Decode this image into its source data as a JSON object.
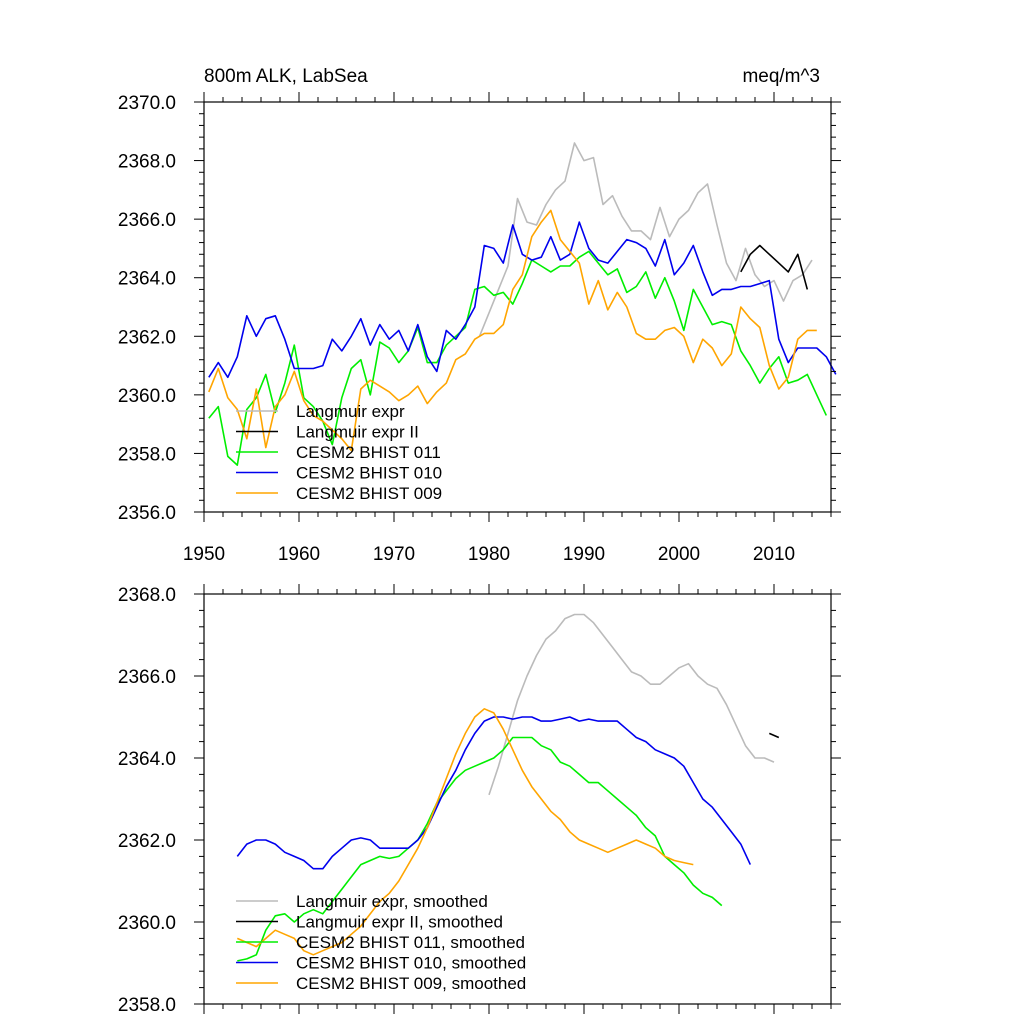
{
  "chart_data": [
    {
      "type": "line",
      "title_left": "800m ALK, LabSea",
      "title_right": "meq/m^3",
      "xlim": [
        1950,
        2016
      ],
      "ylim": [
        2356,
        2370
      ],
      "xticks": [
        1950,
        1960,
        1970,
        1980,
        1990,
        2000,
        2010
      ],
      "xtick_labels": [
        "1950",
        "1960",
        "1970",
        "1980",
        "1990",
        "2000",
        "2010"
      ],
      "yticks": [
        2356,
        2358,
        2360,
        2362,
        2364,
        2366,
        2368,
        2370
      ],
      "ytick_labels": [
        "2356.0",
        "2358.0",
        "2360.0",
        "2362.0",
        "2364.0",
        "2366.0",
        "2368.0",
        "2370.0"
      ],
      "legend_position": "bottom-left",
      "series": [
        {
          "name": "Langmuir expr",
          "color": "#bbbbbb",
          "x_start": 1979,
          "values": [
            2362.0,
            2362.8,
            2363.6,
            2364.4,
            2366.7,
            2365.9,
            2365.8,
            2366.5,
            2367.0,
            2367.3,
            2368.6,
            2368.0,
            2368.1,
            2366.5,
            2366.8,
            2366.1,
            2365.6,
            2365.6,
            2365.3,
            2366.4,
            2365.4,
            2366.0,
            2366.3,
            2366.9,
            2367.2,
            2365.8,
            2364.5,
            2363.9,
            2365.0,
            2364.1,
            2363.7,
            2363.9,
            2363.2,
            2363.9,
            2364.1,
            2364.6
          ]
        },
        {
          "name": "Langmuir expr II",
          "color": "#000000",
          "x_start": 2006.5,
          "values": [
            2364.2,
            2364.8,
            2365.1,
            2364.8,
            2364.5,
            2364.2,
            2364.8,
            2363.6
          ]
        },
        {
          "name": "CESM2 BHIST 011",
          "color": "#00ee00",
          "x_start": 1950.5,
          "values": [
            2359.2,
            2359.6,
            2357.9,
            2357.6,
            2359.5,
            2359.9,
            2360.7,
            2359.4,
            2360.4,
            2361.7,
            2359.9,
            2359.6,
            2359.1,
            2358.3,
            2359.9,
            2360.9,
            2361.2,
            2360.0,
            2361.8,
            2361.6,
            2361.1,
            2361.5,
            2362.3,
            2361.1,
            2361.1,
            2361.7,
            2362.0,
            2362.3,
            2363.6,
            2363.7,
            2363.4,
            2363.5,
            2363.1,
            2363.8,
            2364.6,
            2364.4,
            2364.2,
            2364.4,
            2364.4,
            2364.7,
            2364.9,
            2364.5,
            2364.1,
            2364.3,
            2363.5,
            2363.7,
            2364.2,
            2363.3,
            2364.0,
            2363.2,
            2362.2,
            2363.6,
            2363.0,
            2362.4,
            2362.5,
            2362.4,
            2361.5,
            2361.0,
            2360.4,
            2360.9,
            2361.3,
            2360.4,
            2360.5,
            2360.7,
            2360.0,
            2359.3
          ]
        },
        {
          "name": "CESM2 BHIST 010",
          "color": "#0000ee",
          "x_start": 1950.5,
          "values": [
            2360.6,
            2361.1,
            2360.6,
            2361.3,
            2362.7,
            2362.0,
            2362.6,
            2362.7,
            2361.9,
            2360.9,
            2360.9,
            2360.9,
            2361.0,
            2361.9,
            2361.5,
            2362.0,
            2362.6,
            2361.7,
            2362.4,
            2361.9,
            2362.2,
            2361.5,
            2362.4,
            2361.3,
            2360.8,
            2362.2,
            2361.9,
            2362.4,
            2363.0,
            2365.1,
            2365.0,
            2364.5,
            2365.8,
            2364.8,
            2364.6,
            2364.7,
            2365.4,
            2364.6,
            2364.8,
            2365.9,
            2365.0,
            2364.6,
            2364.5,
            2364.9,
            2365.3,
            2365.2,
            2365.0,
            2364.4,
            2365.3,
            2364.1,
            2364.5,
            2365.1,
            2364.2,
            2363.4,
            2363.6,
            2363.6,
            2363.7,
            2363.7,
            2363.8,
            2363.9,
            2361.9,
            2361.1,
            2361.6,
            2361.6,
            2361.6,
            2361.3,
            2360.7
          ]
        },
        {
          "name": "CESM2 BHIST 009",
          "color": "#ffa500",
          "x_start": 1950.5,
          "values": [
            2360.1,
            2360.9,
            2359.9,
            2359.5,
            2358.5,
            2360.2,
            2358.2,
            2359.6,
            2360.0,
            2360.8,
            2359.8,
            2359.3,
            2359.1,
            2358.8,
            2358.5,
            2358.1,
            2360.2,
            2360.5,
            2360.3,
            2360.1,
            2359.8,
            2360.0,
            2360.3,
            2359.7,
            2360.1,
            2360.4,
            2361.2,
            2361.4,
            2361.9,
            2362.1,
            2362.1,
            2362.4,
            2363.6,
            2364.1,
            2365.4,
            2365.9,
            2366.3,
            2365.3,
            2364.9,
            2364.5,
            2363.1,
            2363.9,
            2362.9,
            2363.5,
            2363.0,
            2362.1,
            2361.9,
            2361.9,
            2362.2,
            2362.3,
            2362.0,
            2361.1,
            2361.9,
            2361.6,
            2361.0,
            2361.4,
            2363.0,
            2362.6,
            2362.3,
            2361.0,
            2360.2,
            2360.6,
            2361.9,
            2362.2,
            2362.2
          ]
        }
      ]
    },
    {
      "type": "line",
      "xlim": [
        1950,
        2016
      ],
      "ylim": [
        2358,
        2368
      ],
      "xticks": [
        1950,
        1960,
        1970,
        1980,
        1990,
        2000,
        2010
      ],
      "yticks": [
        2358,
        2360,
        2362,
        2364,
        2366,
        2368
      ],
      "ytick_labels": [
        "2358.0",
        "2360.0",
        "2362.0",
        "2364.0",
        "2366.0",
        "2368.0"
      ],
      "legend_position": "bottom-left",
      "series": [
        {
          "name": "Langmuir expr, smoothed",
          "color": "#bbbbbb",
          "x_start": 1980,
          "values": [
            2363.1,
            2363.8,
            2364.6,
            2365.4,
            2366.0,
            2366.5,
            2366.9,
            2367.1,
            2367.4,
            2367.5,
            2367.5,
            2367.3,
            2367.0,
            2366.7,
            2366.4,
            2366.1,
            2366.0,
            2365.8,
            2365.8,
            2366.0,
            2366.2,
            2366.3,
            2366.0,
            2365.8,
            2365.7,
            2365.3,
            2364.8,
            2364.3,
            2364.0,
            2364.0,
            2363.9
          ]
        },
        {
          "name": "Langmuir expr II, smoothed",
          "color": "#000000",
          "x_start": 2009.5,
          "values": [
            2364.6,
            2364.5
          ]
        },
        {
          "name": "CESM2 BHIST 011, smoothed",
          "color": "#00ee00",
          "x_start": 1953.5,
          "values": [
            2359.05,
            2359.1,
            2359.2,
            2359.8,
            2360.15,
            2360.2,
            2360.0,
            2360.2,
            2360.3,
            2360.2,
            2360.5,
            2360.8,
            2361.1,
            2361.4,
            2361.5,
            2361.6,
            2361.55,
            2361.6,
            2361.8,
            2362.0,
            2362.4,
            2362.9,
            2363.2,
            2363.5,
            2363.7,
            2363.8,
            2363.9,
            2364.0,
            2364.2,
            2364.5,
            2364.5,
            2364.5,
            2364.3,
            2364.2,
            2363.9,
            2363.8,
            2363.6,
            2363.4,
            2363.4,
            2363.2,
            2363.0,
            2362.8,
            2362.6,
            2362.3,
            2362.1,
            2361.6,
            2361.4,
            2361.2,
            2360.9,
            2360.7,
            2360.6,
            2360.4
          ]
        },
        {
          "name": "CESM2 BHIST 010, smoothed",
          "color": "#0000ee",
          "x_start": 1953.5,
          "values": [
            2361.6,
            2361.9,
            2362.0,
            2362.0,
            2361.9,
            2361.7,
            2361.6,
            2361.5,
            2361.3,
            2361.3,
            2361.6,
            2361.8,
            2362.0,
            2362.05,
            2362.0,
            2361.8,
            2361.8,
            2361.8,
            2361.8,
            2362.0,
            2362.3,
            2362.8,
            2363.3,
            2363.7,
            2364.2,
            2364.6,
            2364.9,
            2365.0,
            2365.0,
            2364.95,
            2365.0,
            2365.0,
            2364.9,
            2364.9,
            2364.95,
            2365.0,
            2364.9,
            2364.95,
            2364.9,
            2364.9,
            2364.9,
            2364.7,
            2364.5,
            2364.4,
            2364.2,
            2364.1,
            2364.0,
            2363.8,
            2363.4,
            2363.0,
            2362.8,
            2362.5,
            2362.2,
            2361.9,
            2361.4
          ]
        },
        {
          "name": "CESM2 BHIST 009, smoothed",
          "color": "#ffa500",
          "x_start": 1953.5,
          "values": [
            2359.6,
            2359.5,
            2359.4,
            2359.6,
            2359.8,
            2359.7,
            2359.6,
            2359.3,
            2359.2,
            2359.3,
            2359.4,
            2359.5,
            2359.7,
            2359.9,
            2360.2,
            2360.5,
            2360.7,
            2361.0,
            2361.4,
            2361.8,
            2362.3,
            2362.9,
            2363.5,
            2364.1,
            2364.6,
            2365.0,
            2365.2,
            2365.1,
            2364.7,
            2364.2,
            2363.7,
            2363.3,
            2363.0,
            2362.7,
            2362.5,
            2362.2,
            2362.0,
            2361.9,
            2361.8,
            2361.7,
            2361.8,
            2361.9,
            2362.0,
            2361.9,
            2361.8,
            2361.6,
            2361.5,
            2361.45,
            2361.4
          ]
        }
      ]
    }
  ]
}
